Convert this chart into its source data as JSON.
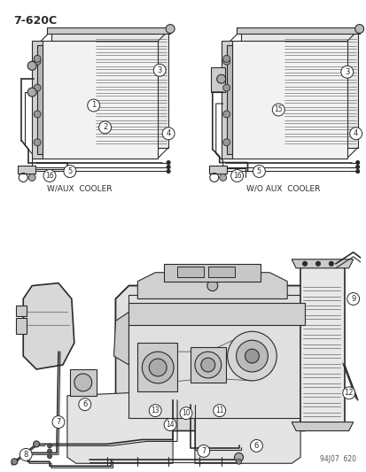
{
  "title": "7-620C",
  "bg_color": "#ffffff",
  "line_color": "#2a2a2a",
  "diagram_ref": "94J07  620",
  "label_w_aux": "W/AUX  COOLER",
  "label_wo_aux": "W/O AUX  COOLER",
  "fig_width": 4.14,
  "fig_height": 5.33,
  "dpi": 100
}
